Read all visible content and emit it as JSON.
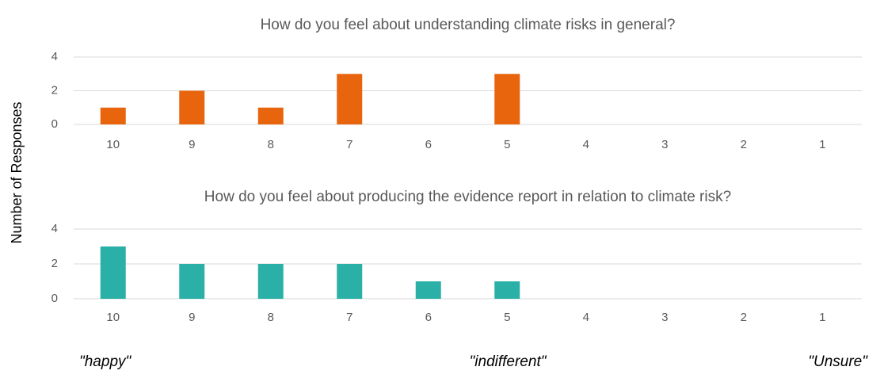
{
  "chart_data": [
    {
      "type": "bar",
      "title": "How do you feel about understanding climate risks in general?",
      "categories": [
        "10",
        "9",
        "8",
        "7",
        "6",
        "5",
        "4",
        "3",
        "2",
        "1"
      ],
      "values": [
        1,
        2,
        1,
        3,
        0,
        3,
        0,
        0,
        0,
        0
      ],
      "color": "#e8650e",
      "ylim": [
        0,
        4
      ],
      "yticks": [
        0,
        2,
        4
      ],
      "grid": true
    },
    {
      "type": "bar",
      "title": "How do you feel about producing the evidence report in relation to climate risk?",
      "categories": [
        "10",
        "9",
        "8",
        "7",
        "6",
        "5",
        "4",
        "3",
        "2",
        "1"
      ],
      "values": [
        3,
        2,
        2,
        2,
        1,
        1,
        0,
        0,
        0,
        0
      ],
      "color": "#2bb0a8",
      "ylim": [
        0,
        4
      ],
      "yticks": [
        0,
        2,
        4
      ],
      "grid": true
    }
  ],
  "ylabel": "Number of Responses",
  "annotations": [
    "\"happy\"",
    "\"indifferent\"",
    "\"Unsure\""
  ]
}
